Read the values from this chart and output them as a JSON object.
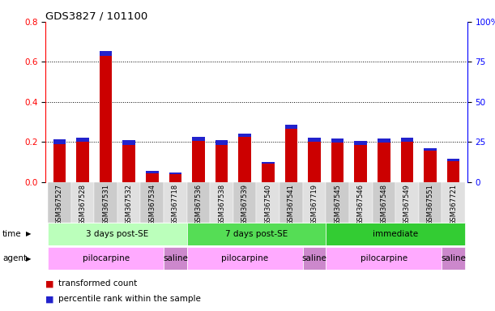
{
  "title": "GDS3827 / 101100",
  "samples": [
    "GSM367527",
    "GSM367528",
    "GSM367531",
    "GSM367532",
    "GSM367534",
    "GSM367718",
    "GSM367536",
    "GSM367538",
    "GSM367539",
    "GSM367540",
    "GSM367541",
    "GSM367719",
    "GSM367545",
    "GSM367546",
    "GSM367548",
    "GSM367549",
    "GSM367551",
    "GSM367721"
  ],
  "red_values": [
    0.19,
    0.2,
    0.63,
    0.185,
    0.045,
    0.04,
    0.205,
    0.185,
    0.225,
    0.09,
    0.265,
    0.2,
    0.195,
    0.185,
    0.195,
    0.2,
    0.155,
    0.105
  ],
  "blue_values": [
    0.022,
    0.022,
    0.025,
    0.022,
    0.01,
    0.008,
    0.022,
    0.022,
    0.018,
    0.01,
    0.022,
    0.022,
    0.02,
    0.018,
    0.02,
    0.022,
    0.012,
    0.01
  ],
  "time_groups": [
    {
      "label": "3 days post-SE",
      "start": 0,
      "end": 6,
      "color": "#bbffbb"
    },
    {
      "label": "7 days post-SE",
      "start": 6,
      "end": 12,
      "color": "#55dd55"
    },
    {
      "label": "immediate",
      "start": 12,
      "end": 18,
      "color": "#33cc33"
    }
  ],
  "agent_groups": [
    {
      "label": "pilocarpine",
      "start": 0,
      "end": 5,
      "color": "#ffaaff"
    },
    {
      "label": "saline",
      "start": 5,
      "end": 6,
      "color": "#cc88cc"
    },
    {
      "label": "pilocarpine",
      "start": 6,
      "end": 11,
      "color": "#ffaaff"
    },
    {
      "label": "saline",
      "start": 11,
      "end": 12,
      "color": "#cc88cc"
    },
    {
      "label": "pilocarpine",
      "start": 12,
      "end": 17,
      "color": "#ffaaff"
    },
    {
      "label": "saline",
      "start": 17,
      "end": 18,
      "color": "#cc88cc"
    }
  ],
  "ylim_left": [
    0,
    0.8
  ],
  "ylim_right": [
    0,
    100
  ],
  "yticks_left": [
    0,
    0.2,
    0.4,
    0.6,
    0.8
  ],
  "yticks_right": [
    0,
    25,
    50,
    75,
    100
  ],
  "red_color": "#cc0000",
  "blue_color": "#2222cc",
  "bar_width": 0.55
}
